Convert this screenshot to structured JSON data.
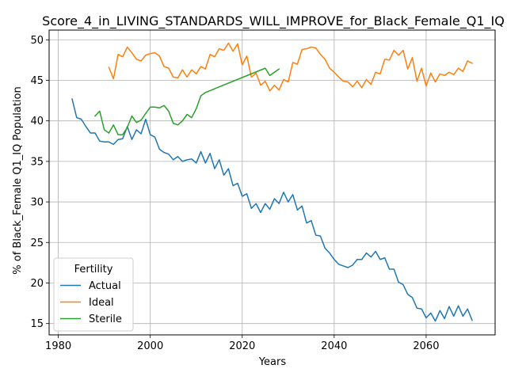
{
  "chart_data": {
    "type": "line",
    "title": "Score_4_in_LIVING_STANDARDS_WILL_IMPROVE_for_Black_Female_Q1_IQ",
    "xlabel": "Years",
    "ylabel": "% of Black_Female Q1_IQ Population",
    "xlim": [
      1978,
      2075
    ],
    "ylim": [
      13.6,
      51.2
    ],
    "xticks": [
      1980,
      2000,
      2020,
      2040,
      2060
    ],
    "yticks": [
      15,
      20,
      25,
      30,
      35,
      40,
      45,
      50
    ],
    "grid": true,
    "legend": {
      "title": "Fertility",
      "placement": "lower-left"
    },
    "series": [
      {
        "name": "Actual",
        "color": "#1f77b4",
        "x": [
          1983,
          1984,
          1985,
          1986,
          1987,
          1988,
          1989,
          1990,
          1991,
          1992,
          1993,
          1994,
          1995,
          1996,
          1997,
          1998,
          1999,
          2000,
          2001,
          2002,
          2003,
          2004,
          2005,
          2006,
          2007,
          2008,
          2009,
          2010,
          2011,
          2012,
          2013,
          2014,
          2015,
          2016,
          2017,
          2018,
          2019,
          2020,
          2021,
          2022,
          2023,
          2024,
          2025,
          2026,
          2027,
          2028,
          2029,
          2030,
          2031,
          2032,
          2033,
          2034,
          2035,
          2036,
          2037,
          2038,
          2039,
          2040,
          2041,
          2042,
          2043,
          2044,
          2045,
          2046,
          2047,
          2048,
          2049,
          2050,
          2051,
          2052,
          2053,
          2054,
          2055,
          2056,
          2057,
          2058,
          2059,
          2060,
          2061,
          2062,
          2063,
          2064,
          2065,
          2066,
          2067,
          2068,
          2069,
          2070
        ],
        "values": [
          42.7,
          40.4,
          40.2,
          39.3,
          38.5,
          38.5,
          37.5,
          37.4,
          37.4,
          37.1,
          37.7,
          37.8,
          39.3,
          37.7,
          38.9,
          38.4,
          40.2,
          38.3,
          38.0,
          36.5,
          36.1,
          35.9,
          35.2,
          35.6,
          35.0,
          35.2,
          35.3,
          34.8,
          36.2,
          34.8,
          36.0,
          34.1,
          35.2,
          33.3,
          34.1,
          32.0,
          32.3,
          30.7,
          31.0,
          29.2,
          29.8,
          28.7,
          29.8,
          29.1,
          30.4,
          29.8,
          31.2,
          30.0,
          30.9,
          29.0,
          29.5,
          27.4,
          27.7,
          25.9,
          25.8,
          24.3,
          23.7,
          22.9,
          22.3,
          22.1,
          21.9,
          22.2,
          22.9,
          22.9,
          23.7,
          23.2,
          23.9,
          22.9,
          23.1,
          21.7,
          21.7,
          20.1,
          19.8,
          18.6,
          18.2,
          16.9,
          16.8,
          15.7,
          16.3,
          15.3,
          16.6,
          15.6,
          17.1,
          15.9,
          17.2,
          15.9,
          16.8,
          15.4
        ]
      },
      {
        "name": "Ideal",
        "color": "#ff7f0e",
        "x": [
          1991,
          1992,
          1993,
          1994,
          1995,
          1996,
          1997,
          1998,
          1999,
          2000,
          2001,
          2002,
          2003,
          2004,
          2005,
          2006,
          2007,
          2008,
          2009,
          2010,
          2011,
          2012,
          2013,
          2014,
          2015,
          2016,
          2017,
          2018,
          2019,
          2020,
          2021,
          2022,
          2023,
          2024,
          2025,
          2026,
          2027,
          2028,
          2029,
          2030,
          2031,
          2032,
          2033,
          2034,
          2035,
          2036,
          2037,
          2038,
          2039,
          2040,
          2041,
          2042,
          2043,
          2044,
          2045,
          2046,
          2047,
          2048,
          2049,
          2050,
          2051,
          2052,
          2053,
          2054,
          2055,
          2056,
          2057,
          2058,
          2059,
          2060,
          2061,
          2062,
          2063,
          2064,
          2065,
          2066,
          2067,
          2068,
          2069,
          2070
        ],
        "values": [
          46.6,
          45.2,
          48.2,
          47.9,
          49.1,
          48.4,
          47.6,
          47.4,
          48.1,
          48.3,
          48.4,
          48.0,
          46.7,
          46.5,
          45.4,
          45.3,
          46.3,
          45.4,
          46.3,
          45.8,
          46.7,
          46.4,
          48.2,
          47.9,
          48.9,
          48.7,
          49.6,
          48.6,
          49.5,
          46.9,
          48.0,
          45.4,
          45.9,
          44.4,
          44.9,
          43.7,
          44.4,
          43.8,
          45.1,
          44.8,
          47.2,
          47.0,
          48.8,
          48.9,
          49.1,
          49.0,
          48.2,
          47.6,
          46.5,
          46.0,
          45.4,
          44.9,
          44.8,
          44.2,
          44.9,
          44.1,
          45.1,
          44.5,
          46.0,
          45.8,
          47.6,
          47.5,
          48.7,
          48.1,
          48.7,
          46.4,
          47.8,
          44.9,
          46.5,
          44.3,
          45.9,
          44.8,
          45.8,
          45.6,
          46.0,
          45.7,
          46.5,
          46.1,
          47.4,
          47.1
        ]
      },
      {
        "name": "Sterile",
        "color": "#2ca02c",
        "x": [
          1988,
          1989,
          1990,
          1991,
          1992,
          1993,
          1994,
          1995,
          1996,
          1997,
          1998,
          1999,
          2000,
          2001,
          2002,
          2003,
          2004,
          2005,
          2006,
          2007,
          2008,
          2009,
          2010,
          2011,
          2012,
          2025,
          2026,
          2027,
          2028
        ],
        "values": [
          40.6,
          41.2,
          38.9,
          38.5,
          39.5,
          38.3,
          38.3,
          39.2,
          40.6,
          39.8,
          40.1,
          40.9,
          41.7,
          41.7,
          41.6,
          41.9,
          41.2,
          39.7,
          39.5,
          40.0,
          40.8,
          40.4,
          41.5,
          43.1,
          43.5,
          46.5,
          45.6,
          46.0,
          46.4
        ]
      }
    ]
  }
}
